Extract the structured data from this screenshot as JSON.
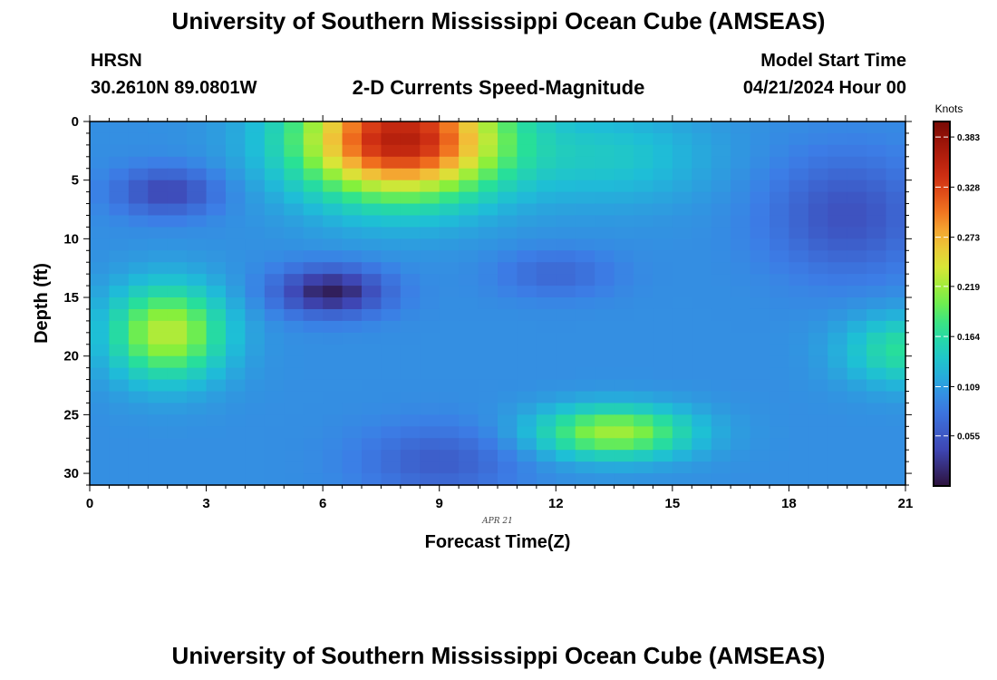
{
  "header": {
    "title": "University of Southern Mississippi Ocean Cube (AMSEAS)",
    "station": "HRSN",
    "coords": "30.2610N  89.0801W",
    "subtitle": "2-D Currents Speed-Magnitude",
    "model_start_label": "Model Start Time",
    "model_start_value": "04/21/2024 Hour 00"
  },
  "footer": {
    "title": "University of Southern Mississippi Ocean Cube (AMSEAS)"
  },
  "chart_data": {
    "type": "heatmap",
    "title": "2-D Currents Speed-Magnitude",
    "xlabel": "Forecast Time(Z)",
    "ylabel": "Depth (ft)",
    "date_label": "APR 21",
    "xlim": [
      0,
      21
    ],
    "ylim": [
      0,
      31
    ],
    "y_inverted": true,
    "x_ticks": [
      0,
      3,
      6,
      9,
      12,
      15,
      18,
      21
    ],
    "y_ticks": [
      0,
      5,
      10,
      15,
      20,
      25,
      30
    ],
    "colorbar": {
      "label": "Knots",
      "min": 0.0,
      "max": 0.4,
      "ticks": [
        "0.383",
        "0.328",
        "0.273",
        "0.219",
        "0.164",
        "0.109",
        "0.055"
      ],
      "tick_values": [
        0.383,
        0.328,
        0.273,
        0.219,
        0.164,
        0.109,
        0.055
      ]
    },
    "grid_cols": 42,
    "grid_rows": 31,
    "features": [
      {
        "cx": 8.0,
        "cy": 1.5,
        "sx": 2.6,
        "sy": 5.0,
        "amp": 0.26,
        "desc": "surface jet core"
      },
      {
        "cx": 2.0,
        "cy": 18.0,
        "sx": 1.5,
        "sy": 4.0,
        "amp": 0.13,
        "desc": "mid-depth max left"
      },
      {
        "cx": 13.5,
        "cy": 26.5,
        "sx": 2.0,
        "sy": 2.2,
        "amp": 0.12,
        "desc": "deep max"
      },
      {
        "cx": 21.0,
        "cy": 19.5,
        "sx": 1.6,
        "sy": 3.0,
        "amp": 0.07,
        "desc": "right edge max"
      },
      {
        "cx": 13.5,
        "cy": 3.0,
        "sx": 2.5,
        "sy": 4.0,
        "amp": 0.04,
        "desc": "upper plateau"
      },
      {
        "cx": 6.2,
        "cy": 14.5,
        "sx": 1.4,
        "sy": 2.0,
        "amp": -0.09,
        "desc": "mid-depth min"
      },
      {
        "cx": 2.0,
        "cy": 6.0,
        "sx": 1.3,
        "sy": 2.0,
        "amp": -0.06,
        "desc": "upper min left"
      },
      {
        "cx": 19.5,
        "cy": 8.0,
        "sx": 2.0,
        "sy": 5.0,
        "amp": -0.05,
        "desc": "upper min right"
      },
      {
        "cx": 9.0,
        "cy": 29.0,
        "sx": 2.0,
        "sy": 3.0,
        "amp": -0.04,
        "desc": "deep min"
      },
      {
        "cx": 12.0,
        "cy": 13.0,
        "sx": 1.5,
        "sy": 2.0,
        "amp": -0.03,
        "desc": "mid min"
      }
    ],
    "base_value": 0.1
  }
}
